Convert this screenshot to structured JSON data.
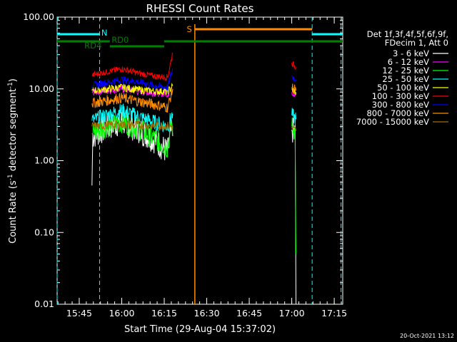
{
  "chart_data": {
    "type": "line",
    "title": "RHESSI Count Rates",
    "xlabel": "Start Time (29-Aug-04 15:37:02)",
    "ylabel_parts": [
      "Count Rate (s",
      "-1",
      " detector segment",
      "-1",
      ")"
    ],
    "yscale": "log",
    "ylim": [
      0.01,
      100
    ],
    "xlim_minutes": [
      15.62,
      17.3
    ],
    "x_start_label": "15:37:02",
    "x_tick_labels": [
      {
        "t": "15:45",
        "hours": 15.75
      },
      {
        "t": "16:00",
        "hours": 16.0
      },
      {
        "t": "16:15",
        "hours": 16.25
      },
      {
        "t": "16:30",
        "hours": 16.5
      },
      {
        "t": "16:45",
        "hours": 16.75
      },
      {
        "t": "17:00",
        "hours": 17.0
      },
      {
        "t": "17:15",
        "hours": 17.25
      }
    ],
    "y_tick_labels": [
      {
        "t": "100.00",
        "v": 100
      },
      {
        "t": "10.00",
        "v": 10
      },
      {
        "t": "1.00",
        "v": 1
      },
      {
        "t": "0.10",
        "v": 0.1
      },
      {
        "t": "0.01",
        "v": 0.01
      }
    ],
    "legend_header": [
      "Det 1f,3f,4f,5f,6f,9f,",
      "FDecim 1, Att 0"
    ],
    "series": [
      {
        "name": "3 - 6 keV",
        "color": "#ffffff",
        "seg1": [
          [
            15.825,
            0.45
          ],
          [
            15.83,
            2.2
          ],
          [
            15.9,
            2.8
          ],
          [
            16.0,
            3.5
          ],
          [
            16.1,
            2.7
          ],
          [
            16.2,
            1.9
          ],
          [
            16.27,
            1.3
          ],
          [
            16.29,
            2.5
          ],
          [
            16.3,
            2.2
          ]
        ],
        "seg2": [
          [
            17.0,
            2.7
          ],
          [
            17.02,
            2.4
          ],
          [
            17.025,
            0.01
          ]
        ]
      },
      {
        "name": "6 - 12 keV",
        "color": "#ff00ff",
        "seg1": [
          [
            15.825,
            9.0
          ],
          [
            15.9,
            9.5
          ],
          [
            16.0,
            10.0
          ],
          [
            16.1,
            9.2
          ],
          [
            16.2,
            8.8
          ],
          [
            16.27,
            8.5
          ],
          [
            16.3,
            10.0
          ]
        ],
        "seg2": [
          [
            17.0,
            9.0
          ],
          [
            17.025,
            8.2
          ]
        ]
      },
      {
        "name": "12 - 25 keV",
        "color": "#00ff00",
        "seg1": [
          [
            15.825,
            2.4
          ],
          [
            15.9,
            2.9
          ],
          [
            16.0,
            3.5
          ],
          [
            16.1,
            2.8
          ],
          [
            16.2,
            2.0
          ],
          [
            16.27,
            1.5
          ],
          [
            16.29,
            3.2
          ],
          [
            16.3,
            3.0
          ]
        ],
        "seg2": [
          [
            17.0,
            3.0
          ],
          [
            17.02,
            2.6
          ],
          [
            17.025,
            0.05
          ]
        ]
      },
      {
        "name": "25 - 50 keV",
        "color": "#00ffff",
        "seg1": [
          [
            15.825,
            3.6
          ],
          [
            15.9,
            4.2
          ],
          [
            16.0,
            5.0
          ],
          [
            16.1,
            4.1
          ],
          [
            16.2,
            3.4
          ],
          [
            16.27,
            3.0
          ],
          [
            16.3,
            4.5
          ]
        ],
        "seg2": [
          [
            17.0,
            4.3
          ],
          [
            17.025,
            3.8
          ]
        ]
      },
      {
        "name": "50 - 100 keV",
        "color": "#ffff00",
        "seg1": [
          [
            15.825,
            9.5
          ],
          [
            15.9,
            9.8
          ],
          [
            16.0,
            10.5
          ],
          [
            16.1,
            9.7
          ],
          [
            16.2,
            9.3
          ],
          [
            16.27,
            9.2
          ],
          [
            16.3,
            11.0
          ]
        ],
        "seg2": [
          [
            17.0,
            9.8
          ],
          [
            17.025,
            9.0
          ]
        ]
      },
      {
        "name": "100 - 300 keV",
        "color": "#ff0000",
        "seg1": [
          [
            15.825,
            15.5
          ],
          [
            15.9,
            17.0
          ],
          [
            16.0,
            19.0
          ],
          [
            16.1,
            16.5
          ],
          [
            16.2,
            15.0
          ],
          [
            16.27,
            14.5
          ],
          [
            16.3,
            32.0
          ]
        ],
        "seg2": [
          [
            17.0,
            23.0
          ],
          [
            17.025,
            20.0
          ]
        ]
      },
      {
        "name": "300 - 800 keV",
        "color": "#0000ff",
        "seg1": [
          [
            15.825,
            11.0
          ],
          [
            15.9,
            12.0
          ],
          [
            16.0,
            13.5
          ],
          [
            16.1,
            12.5
          ],
          [
            16.2,
            11.0
          ],
          [
            16.27,
            10.5
          ],
          [
            16.3,
            19.0
          ]
        ],
        "seg2": [
          [
            17.0,
            15.0
          ],
          [
            17.025,
            13.5
          ]
        ]
      },
      {
        "name": "800 - 7000 keV",
        "color": "#ff8c00",
        "seg1": [
          [
            15.825,
            6.3
          ],
          [
            15.9,
            6.8
          ],
          [
            16.0,
            7.5
          ],
          [
            16.1,
            6.7
          ],
          [
            16.2,
            6.0
          ],
          [
            16.27,
            5.5
          ],
          [
            16.3,
            10.0
          ]
        ],
        "seg2": [
          [
            17.0,
            10.5
          ],
          [
            17.025,
            9.5
          ]
        ]
      },
      {
        "name": "7000 - 15000 keV",
        "color": "#a07000",
        "seg1": [
          [
            15.825,
            3.0
          ],
          [
            16.0,
            3.2
          ],
          [
            16.3,
            3.0
          ]
        ],
        "seg2": [
          [
            17.0,
            2.8
          ],
          [
            17.025,
            2.6
          ]
        ]
      }
    ],
    "annotations": {
      "N_label": "N",
      "RD0_label": "RD0",
      "RD4_label": "RD4",
      "S_label": "S",
      "saa_color": "#ff8c00",
      "night_color": "#00ffff",
      "decim_color": "#008000",
      "night_bars": [
        [
          15.62,
          15.87
        ],
        [
          17.12,
          17.3
        ]
      ],
      "night_boundaries": [
        15.62,
        15.87,
        17.12,
        17.29
      ],
      "saa_bar": [
        16.43,
        17.12
      ],
      "saa_line": 16.43,
      "decim_high": [
        [
          15.62,
          15.93
        ],
        [
          16.25,
          17.3
        ]
      ],
      "decim_low": [
        [
          15.93,
          16.25
        ]
      ]
    }
  },
  "timestamp": "20-Oct-2021 13:12"
}
